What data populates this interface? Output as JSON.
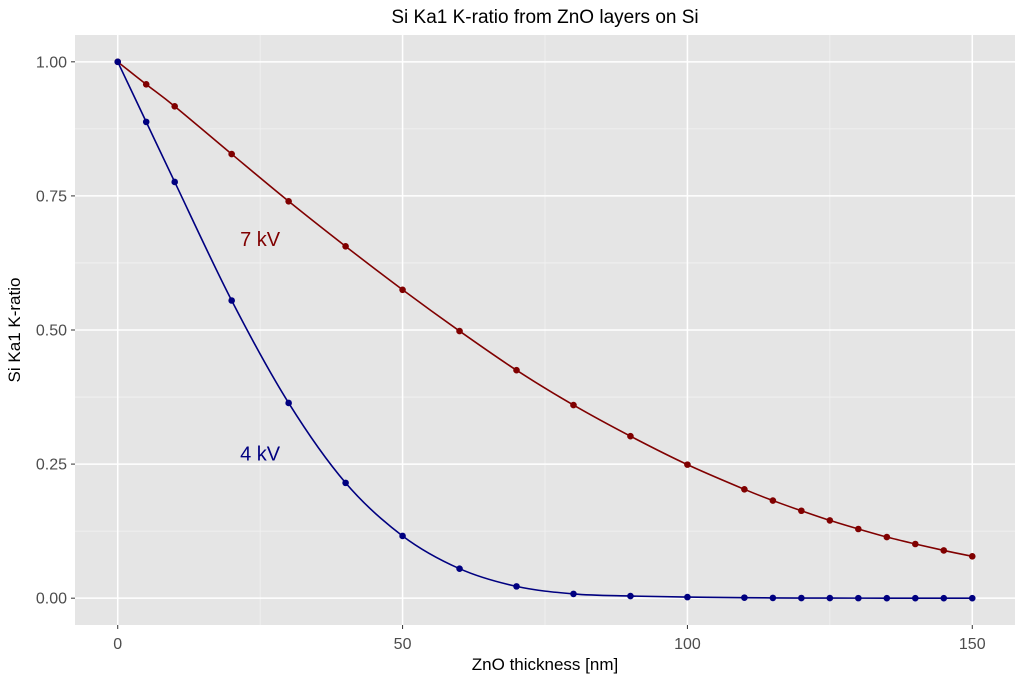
{
  "chart_data": {
    "type": "line",
    "title": "Si Ka1 K-ratio from ZnO layers on Si",
    "xlabel": "ZnO thickness [nm]",
    "ylabel": "Si Ka1 K-ratio",
    "xlim": [
      -7.5,
      157.5
    ],
    "ylim": [
      -0.05,
      1.05
    ],
    "x_ticks": [
      0,
      50,
      100,
      150
    ],
    "x_tick_labels": [
      "0",
      "50",
      "100",
      "150"
    ],
    "y_ticks": [
      0,
      0.25,
      0.5,
      0.75,
      1.0
    ],
    "y_tick_labels": [
      "0.00",
      "0.25",
      "0.50",
      "0.75",
      "1.00"
    ],
    "grid": true,
    "legend": "none",
    "background": "#e5e5e5",
    "series": [
      {
        "key": "kv7",
        "color": "#800000",
        "x": [
          0,
          5,
          10,
          20,
          30,
          40,
          50,
          60,
          70,
          80,
          90,
          100,
          110,
          115,
          120,
          125,
          130,
          135,
          140,
          145,
          150
        ],
        "y": [
          1.0,
          0.958,
          0.917,
          0.828,
          0.74,
          0.656,
          0.575,
          0.498,
          0.425,
          0.36,
          0.302,
          0.249,
          0.203,
          0.182,
          0.163,
          0.145,
          0.129,
          0.114,
          0.101,
          0.089,
          0.078
        ]
      },
      {
        "key": "kv4",
        "color": "#000080",
        "x": [
          0,
          5,
          10,
          20,
          30,
          40,
          50,
          60,
          70,
          80,
          90,
          100,
          110,
          115,
          120,
          125,
          130,
          135,
          140,
          145,
          150
        ],
        "y": [
          1.0,
          0.888,
          0.776,
          0.555,
          0.364,
          0.215,
          0.116,
          0.055,
          0.022,
          0.008,
          0.004,
          0.002,
          0.001,
          0.0005,
          0.0003,
          0.0002,
          0.0001,
          0.0,
          0.0,
          0.0,
          0.0
        ]
      }
    ],
    "annotations": [
      {
        "text": "7 kV",
        "x": 25,
        "y": 0.67,
        "color": "#800000"
      },
      {
        "text": "4 kV",
        "x": 25,
        "y": 0.27,
        "color": "#000080"
      }
    ]
  }
}
